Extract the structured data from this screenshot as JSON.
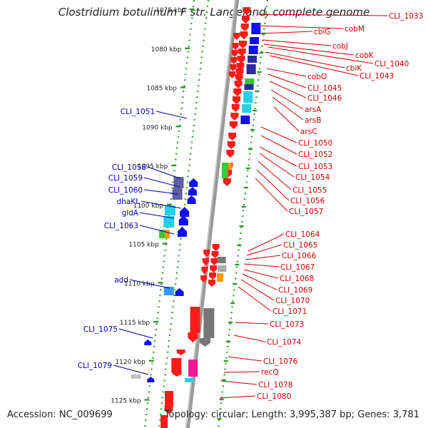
{
  "header": {
    "title": "Clostridium botulinum F str. Langeland, complete genome"
  },
  "footer": {
    "accession": "Accession: NC_009699",
    "summary": "Topology: circular; Length: 3,995,387 bp; Genes: 3,781"
  },
  "colors": {
    "axis": "#9a9a9a",
    "ticks": "#2e9a2e",
    "gene_red": "#ff1a1a",
    "gene_blue": "#1010ee",
    "gene_navy": "#2a2aa0",
    "gene_cyan": "#22d0e8",
    "gene_green": "#33cc33",
    "gene_orange": "#ff9900",
    "gene_gray": "#777777",
    "gene_magenta": "#ff1493",
    "gene_slate": "#6060a0",
    "label_red": "#cc0000",
    "label_blue": "#0000aa"
  },
  "scale": {
    "ticks": [
      {
        "kbp": 1075,
        "label": "1075 kbp"
      },
      {
        "kbp": 1080,
        "label": "1080 kbp"
      },
      {
        "kbp": 1085,
        "label": "1085 kbp"
      },
      {
        "kbp": 1090,
        "label": "1090 kbp"
      },
      {
        "kbp": 1095,
        "label": "1095 kbp"
      },
      {
        "kbp": 1100,
        "label": "1100 kbp"
      },
      {
        "kbp": 1105,
        "label": "1105 kbp"
      },
      {
        "kbp": 1110,
        "label": "1110 kbp"
      },
      {
        "kbp": 1115,
        "label": "1115 kbp"
      },
      {
        "kbp": 1120,
        "label": "1120 kbp"
      },
      {
        "kbp": 1125,
        "label": "1125 kbp"
      }
    ]
  },
  "genes": {
    "left": [
      "CLI_1051",
      "CLI_1058",
      "CLI_1059",
      "CLI_1060",
      "dhaKL",
      "gldA",
      "CLI_1063",
      "add",
      "CLI_1075",
      "CLI_1079"
    ],
    "right": [
      "CLI_1033",
      "cobM",
      "cbiG",
      "cobJ",
      "cobK",
      "CLI_1040",
      "cbiK",
      "CLI_1043",
      "cobO",
      "CLI_1045",
      "CLI_1046",
      "arsA",
      "arsB",
      "arsC",
      "CLI_1050",
      "CLI_1052",
      "CLI_1053",
      "CLI_1054",
      "CLI_1055",
      "CLI_1056",
      "CLI_1057",
      "CLI_1064",
      "CLI_1065",
      "CLI_1066",
      "CLI_1067",
      "CLI_1068",
      "CLI_1069",
      "CLI_1070",
      "CLI_1071",
      "CLI_1073",
      "CLI_1074",
      "CLI_1076",
      "recQ",
      "CLI_1078",
      "CLI_1080"
    ]
  }
}
